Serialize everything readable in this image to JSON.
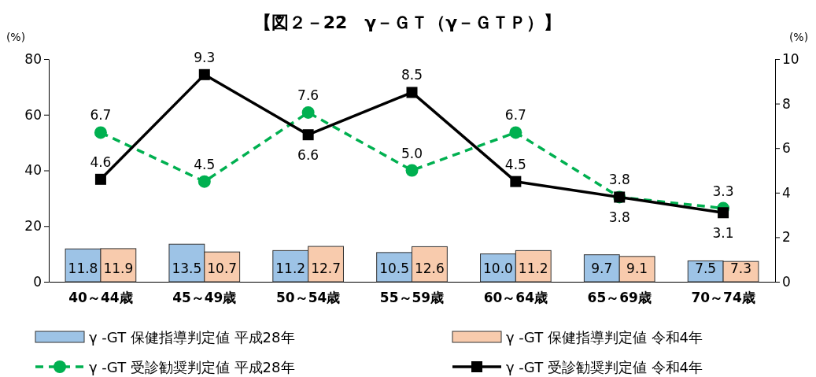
{
  "chart_data": {
    "type": "bar",
    "title": "【図２－22　γ－ＧＴ（γ－ＧＴＰ）】",
    "ylabel": "(%)",
    "y2label": "(%)",
    "categories": [
      "40～44歳",
      "45～49歳",
      "50～54歳",
      "55～59歳",
      "60～64歳",
      "65～69歳",
      "70～74歳"
    ],
    "series": [
      {
        "name": "γ -GT 保健指導判定値 平成28年",
        "color": "#9dc3e6",
        "values": [
          11.8,
          13.5,
          11.2,
          10.5,
          10.0,
          9.7,
          7.5
        ],
        "value_labels": [
          "11.8",
          "13.5",
          "11.2",
          "10.5",
          "10.0",
          "9.7",
          "7.5"
        ]
      },
      {
        "name": "γ -GT 保健指導判定値 令和4年",
        "color": "#f8cbad",
        "values": [
          11.9,
          10.7,
          12.7,
          12.6,
          11.2,
          9.1,
          7.3
        ],
        "value_labels": [
          "11.9",
          "10.7",
          "12.7",
          "12.6",
          "11.2",
          "9.1",
          "7.3"
        ]
      },
      {
        "name": "γ -GT 受診勧奨判定値 平成28年",
        "type": "line",
        "axis": "y2",
        "color": "#00b050",
        "marker": "circle",
        "line_style": "dashed",
        "values": [
          6.7,
          4.5,
          7.6,
          5.0,
          6.7,
          3.8,
          3.3
        ],
        "value_labels": [
          "6.7",
          "4.5",
          "7.6",
          "5.0",
          "6.7",
          "3.8",
          "3.3"
        ]
      },
      {
        "name": "γ -GT 受診勧奨判定値 令和4年",
        "type": "line",
        "axis": "y2",
        "color": "#000000",
        "marker": "square",
        "line_style": "solid",
        "values": [
          4.6,
          9.3,
          6.6,
          8.5,
          4.5,
          3.8,
          3.1
        ],
        "value_labels": [
          "4.6",
          "9.3",
          "6.6",
          "8.5",
          "4.5",
          "3.8",
          "3.1"
        ]
      }
    ],
    "ylim": [
      0,
      80
    ],
    "yticks": [
      0,
      20,
      40,
      60,
      80
    ],
    "y2lim": [
      0,
      10
    ],
    "y2ticks": [
      0,
      2,
      4,
      6,
      8,
      10
    ],
    "legend": "bottom",
    "grid": false
  }
}
